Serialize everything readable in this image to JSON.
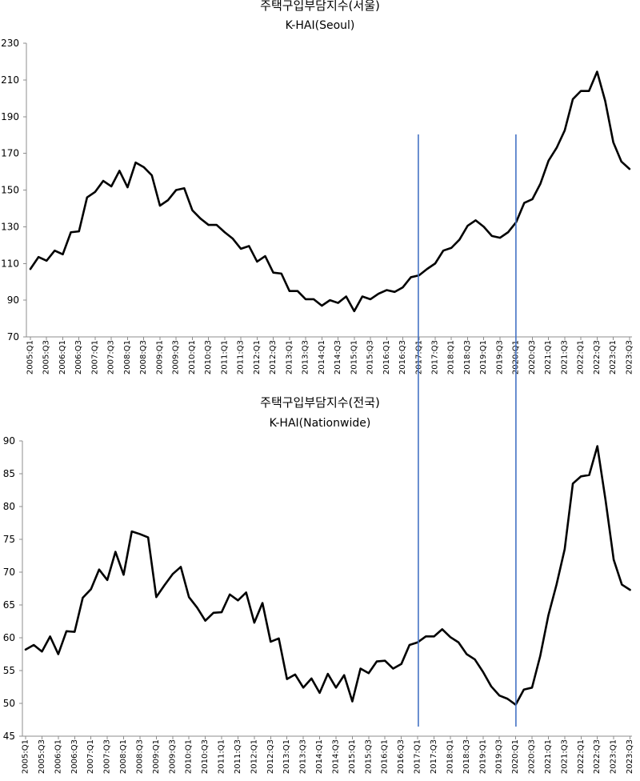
{
  "colors": {
    "series_line": "#000000",
    "axis": "#8c8c8c",
    "reference_line": "#4472c4"
  },
  "chart_data": [
    {
      "type": "line",
      "title": "주택구입부담지수(서울)",
      "subtitle": "K-HAI(Seoul)",
      "ylim": [
        70,
        230
      ],
      "y_ticks": [
        70,
        90,
        110,
        130,
        150,
        170,
        190,
        210,
        230
      ],
      "x_tick_labels": [
        "2005:Q1",
        "2005:Q3",
        "2006:Q1",
        "2006:Q3",
        "2007:Q1",
        "2007:Q3",
        "2008:Q1",
        "2008:Q3",
        "2009:Q1",
        "2009:Q3",
        "2010:Q1",
        "2010:Q3",
        "2011:Q1",
        "2011:Q3",
        "2012:Q1",
        "2012:Q3",
        "2013:Q1",
        "2013:Q3",
        "2014:Q1",
        "2014:Q3",
        "2015:Q1",
        "2015:Q3",
        "2016:Q1",
        "2016:Q3",
        "2017:Q1",
        "2017:Q3",
        "2018:Q1",
        "2018:Q3",
        "2019:Q1",
        "2019:Q3",
        "2020:Q1",
        "2020:Q3",
        "2021:Q1",
        "2021:Q3",
        "2022:Q1",
        "2022:Q3",
        "2023:Q1",
        "2023:Q3"
      ],
      "series": [
        {
          "values": [
            107,
            113.5,
            111.5,
            117,
            115,
            127,
            127.5,
            146,
            149,
            155,
            152,
            160.5,
            151.5,
            165,
            162.5,
            158,
            141.5,
            144.5,
            150,
            151,
            139,
            134.5,
            131,
            131,
            127,
            123.5,
            118,
            119.5,
            111,
            114,
            105,
            104.5,
            95,
            95,
            90.5,
            90.5,
            87,
            90,
            88.5,
            92,
            84,
            92,
            90.5,
            93.5,
            95.5,
            94.5,
            97,
            102.5,
            103.5,
            107,
            110,
            117,
            118.5,
            123,
            130.5,
            133.5,
            130,
            125,
            124,
            127,
            132.5,
            143,
            145,
            153.5,
            166,
            173,
            182.5,
            199.5,
            204,
            204,
            214.5,
            198.5,
            176,
            165.5,
            161.5
          ]
        }
      ]
    },
    {
      "type": "line",
      "title": "주택구입부담지수(전국)",
      "subtitle": "K-HAI(Nationwide)",
      "ylim": [
        45,
        90
      ],
      "y_ticks": [
        45,
        50,
        55,
        60,
        65,
        70,
        75,
        80,
        85,
        90
      ],
      "x_tick_labels": [
        "2005:Q1",
        "2005:Q3",
        "2006:Q1",
        "2006:Q3",
        "2007:Q1",
        "2007:Q3",
        "2008:Q1",
        "2008:Q3",
        "2009:Q1",
        "2009:Q3",
        "2010:Q1",
        "2010:Q3",
        "2011:Q1",
        "2011:Q3",
        "2012:Q1",
        "2012:Q3",
        "2013:Q1",
        "2013:Q3",
        "2014:Q1",
        "2014:Q3",
        "2015:Q1",
        "2015:Q3",
        "2016:Q1",
        "2016:Q3",
        "2017:Q1",
        "2017:Q3",
        "2018:Q1",
        "2018:Q3",
        "2019:Q1",
        "2019:Q3",
        "2020:Q1",
        "2020:Q3",
        "2021:Q1",
        "2021:Q3",
        "2022:Q1",
        "2022:Q3",
        "2023:Q1",
        "2023:Q3"
      ],
      "series": [
        {
          "values": [
            58.2,
            58.9,
            57.9,
            60.2,
            57.5,
            61.0,
            60.9,
            66.1,
            67.4,
            70.4,
            68.8,
            73.1,
            69.6,
            76.2,
            75.8,
            75.3,
            66.2,
            68.0,
            69.7,
            70.8,
            66.2,
            64.6,
            62.6,
            63.8,
            63.9,
            66.6,
            65.7,
            66.9,
            62.3,
            65.3,
            59.4,
            59.9,
            53.7,
            54.4,
            52.4,
            53.8,
            51.6,
            54.5,
            52.4,
            54.3,
            50.3,
            55.3,
            54.6,
            56.4,
            56.5,
            55.3,
            56.0,
            58.9,
            59.3,
            60.2,
            60.2,
            61.3,
            60.1,
            59.3,
            57.5,
            56.7,
            54.8,
            52.6,
            51.2,
            50.7,
            49.8,
            52.1,
            52.4,
            57.2,
            63.4,
            68.1,
            73.5,
            83.5,
            84.6,
            84.8,
            89.2,
            81.0,
            71.9,
            68.1,
            67.3
          ]
        }
      ]
    }
  ],
  "reference_lines": [
    "2017:Q1",
    "2020:Q1"
  ]
}
